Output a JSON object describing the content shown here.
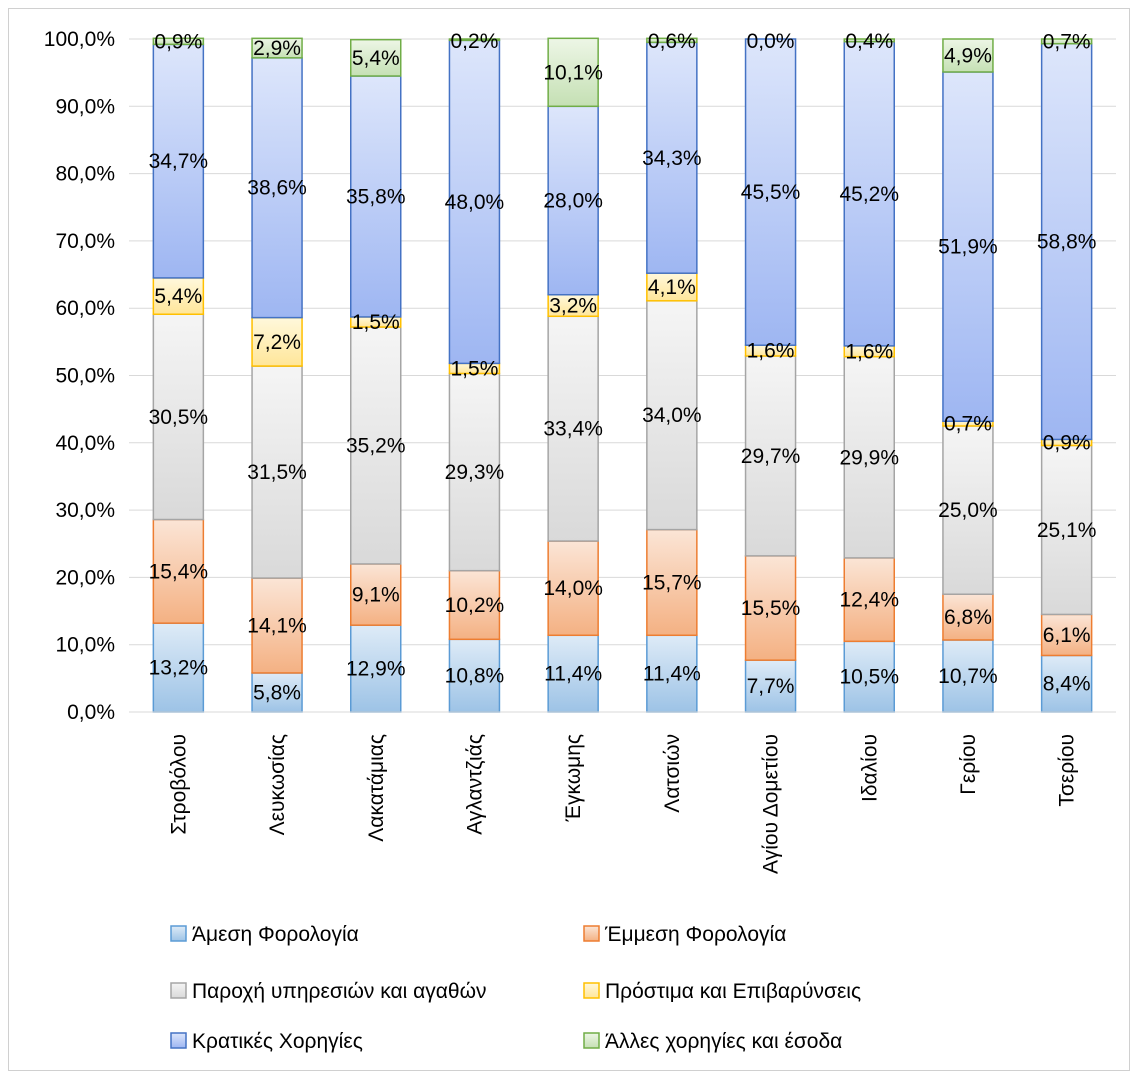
{
  "chart_data": {
    "type": "bar",
    "stacked": true,
    "percent_stacked": true,
    "categories": [
      "Στροβόλου",
      "Λευκωσίας",
      "Λακατάμιας",
      "Αγλαντζιάς",
      "Έγκωμης",
      "Λατσιών",
      "Αγίου Δομετίου",
      "Ιδαλίου",
      "Γερίου",
      "Τσερίου"
    ],
    "series": [
      {
        "name": "Άμεση Φορολογία",
        "values": [
          13.2,
          5.8,
          12.9,
          10.8,
          11.4,
          11.4,
          7.7,
          10.5,
          10.7,
          8.4
        ],
        "labels": [
          "13,2%",
          "5,8%",
          "12,9%",
          "10,8%",
          "11,4%",
          "11,4%",
          "7,7%",
          "10,5%",
          "10,7%",
          "8,4%"
        ],
        "color": "#9DC3E6",
        "color_light": "#DEEBF7",
        "border": "#5B9BD5"
      },
      {
        "name": "Έμμεση Φορολογία",
        "values": [
          15.4,
          14.1,
          9.1,
          10.2,
          14.0,
          15.7,
          15.5,
          12.4,
          6.8,
          6.1
        ],
        "labels": [
          "15,4%",
          "14,1%",
          "9,1%",
          "10,2%",
          "14,0%",
          "15,7%",
          "15,5%",
          "12,4%",
          "6,8%",
          "6,1%"
        ],
        "color": "#F4B183",
        "color_light": "#FBE5D6",
        "border": "#ED7D31"
      },
      {
        "name": "Παροχή υπηρεσιών και αγαθών",
        "values": [
          30.5,
          31.5,
          35.2,
          29.3,
          33.4,
          34.0,
          29.7,
          29.9,
          25.0,
          25.1
        ],
        "labels": [
          "30,5%",
          "31,5%",
          "35,2%",
          "29,3%",
          "33,4%",
          "34,0%",
          "29,7%",
          "29,9%",
          "25,0%",
          "25,1%"
        ],
        "color": "#D9D9D9",
        "color_light": "#F5F5F5",
        "border": "#A5A5A5"
      },
      {
        "name": "Πρόστιμα και Επιβαρύνσεις",
        "values": [
          5.4,
          7.2,
          1.5,
          1.5,
          3.2,
          4.1,
          1.6,
          1.6,
          0.7,
          0.9
        ],
        "labels": [
          "5,4%",
          "7,2%",
          "1,5%",
          "1,5%",
          "3,2%",
          "4,1%",
          "1,6%",
          "1,6%",
          "0,7%",
          "0,9%"
        ],
        "color": "#FFE699",
        "color_light": "#FFF8DC",
        "border": "#FFC000"
      },
      {
        "name": "Κρατικές Χορηγίες",
        "values": [
          34.7,
          38.6,
          35.8,
          48.0,
          28.0,
          34.3,
          45.5,
          45.2,
          51.9,
          58.8
        ],
        "labels": [
          "34,7%",
          "38,6%",
          "35,8%",
          "48,0%",
          "28,0%",
          "34,3%",
          "45,5%",
          "45,2%",
          "51,9%",
          "58,8%"
        ],
        "color": "#9EB6F2",
        "color_light": "#DDE6FB",
        "border": "#4472C4"
      },
      {
        "name": "Άλλες χορηγίες και έσοδα",
        "values": [
          0.9,
          2.9,
          5.4,
          0.2,
          10.1,
          0.6,
          0.0,
          0.4,
          4.9,
          0.7
        ],
        "labels": [
          "0,9%",
          "2,9%",
          "5,4%",
          "0,2%",
          "10,1%",
          "0,6%",
          "0,0%",
          "0,4%",
          "4,9%",
          "0,7%"
        ],
        "color": "#C5E0B4",
        "color_light": "#EDF6E6",
        "border": "#70AD47"
      }
    ],
    "y_ticks": [
      "0,0%",
      "10,0%",
      "20,0%",
      "30,0%",
      "40,0%",
      "50,0%",
      "60,0%",
      "70,0%",
      "80,0%",
      "90,0%",
      "100,0%"
    ],
    "ylim": [
      0,
      100
    ],
    "grid": true,
    "legend_placement": "bottom"
  }
}
